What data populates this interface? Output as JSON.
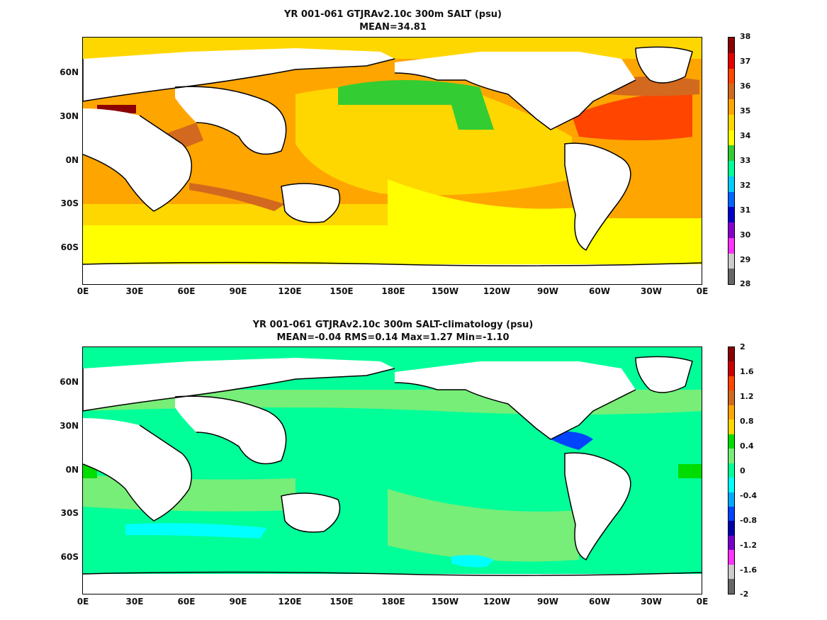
{
  "panels": [
    {
      "title_line1": "YR 001-061 GTJRAv2.10c 300m SALT (psu)",
      "title_line2": "MEAN=34.81",
      "colorbar_labels": [
        "38",
        "37",
        "36",
        "35",
        "34",
        "33",
        "32",
        "31",
        "30",
        "29",
        "28"
      ],
      "colorbar_colors": [
        "#8b0000",
        "#e60000",
        "#ff4500",
        "#d2691e",
        "#ffa500",
        "#ffd700",
        "#ffff00",
        "#33cc33",
        "#00ff99",
        "#00ccff",
        "#0066ff",
        "#0000cc",
        "#8800cc",
        "#ff33ff",
        "#cccccc",
        "#666666"
      ]
    },
    {
      "title_line1": "YR 001-061 GTJRAv2.10c 300m SALT-climatology (psu)",
      "title_line2": "MEAN=-0.04   RMS=0.14   Max=1.27   Min=-1.10",
      "colorbar_labels": [
        "2",
        "1.6",
        "1.2",
        "0.8",
        "0.4",
        "0",
        "-0.4",
        "-0.8",
        "-1.2",
        "-1.6",
        "-2"
      ],
      "colorbar_colors": [
        "#8b0000",
        "#cc0000",
        "#ff4500",
        "#d2691e",
        "#ffa500",
        "#ffd700",
        "#00dd00",
        "#77ee77",
        "#00ff99",
        "#00ffff",
        "#00aaff",
        "#0044ff",
        "#0000aa",
        "#7700cc",
        "#ff33ff",
        "#cccccc",
        "#666666"
      ]
    }
  ],
  "y_axis": [
    "60N",
    "30N",
    "0N",
    "30S",
    "60S"
  ],
  "x_axis": [
    "0E",
    "30E",
    "60E",
    "90E",
    "120E",
    "150E",
    "180E",
    "150W",
    "120W",
    "90W",
    "60W",
    "30W",
    "0E"
  ]
}
